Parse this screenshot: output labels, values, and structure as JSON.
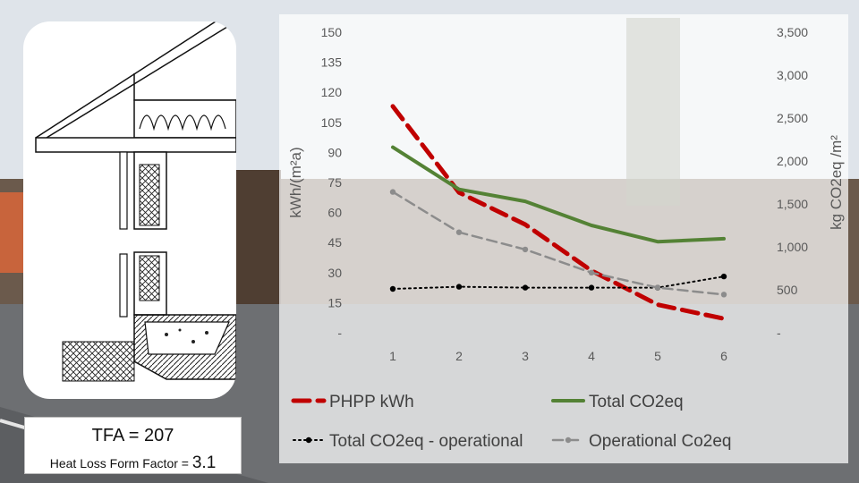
{
  "info": {
    "tfa_label": "TFA = 207",
    "hlff_label": "Heat Loss Form Factor = ",
    "hlff_value": "3.1"
  },
  "chart_data": {
    "type": "line",
    "x": [
      1,
      2,
      3,
      4,
      5,
      6
    ],
    "ylabel_left": "kWh/(m²a)",
    "ylabel_right": "kg CO2eq /m²",
    "ylim_left": [
      0,
      150
    ],
    "ylim_right": [
      0,
      3500
    ],
    "yticks_left": [
      "-",
      "15",
      "30",
      "45",
      "60",
      "75",
      "90",
      "105",
      "120",
      "135",
      "150"
    ],
    "yticks_right": [
      "-",
      "500",
      "1,000",
      "1,500",
      "2,000",
      "2,500",
      "3,000",
      "3,500"
    ],
    "grid": false,
    "legend_position": "bottom",
    "series": [
      {
        "name": "PHPP kWh",
        "axis": "left",
        "color": "#c00000",
        "style": "dashed",
        "values": [
          113,
          70,
          54,
          31,
          14,
          7
        ]
      },
      {
        "name": "Total CO2eq",
        "axis": "right",
        "color": "#548235",
        "style": "solid",
        "values": [
          2160,
          1670,
          1530,
          1250,
          1060,
          1095
        ]
      },
      {
        "name": "Total CO2eq - operational",
        "axis": "right",
        "color": "#000000",
        "style": "dotted",
        "values": [
          510,
          535,
          525,
          525,
          525,
          655
        ]
      },
      {
        "name": "Operational Co2eq",
        "axis": "right",
        "color": "#8c8c8c",
        "style": "dashed",
        "values": [
          1640,
          1170,
          970,
          700,
          525,
          445
        ]
      }
    ]
  }
}
